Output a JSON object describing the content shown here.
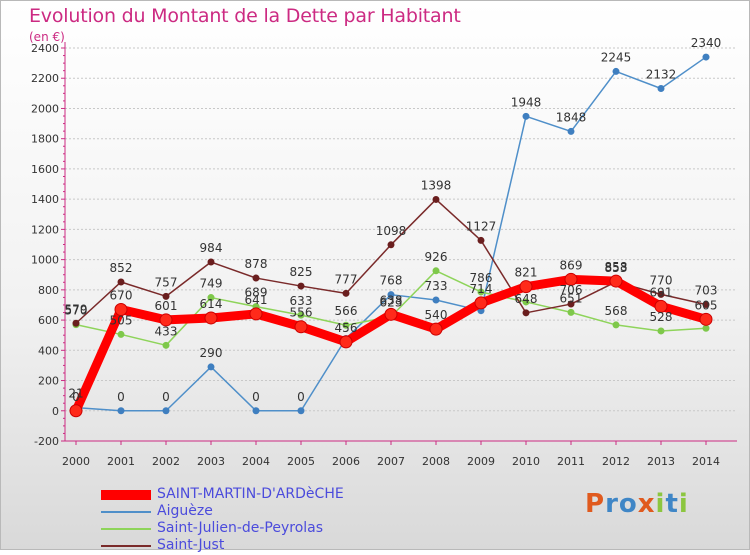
{
  "title": "Evolution du Montant de la Dette par Habitant",
  "unit_label": "(en €)",
  "logo": {
    "letters": [
      "P",
      "r",
      "o",
      "x",
      "i",
      "t",
      "i"
    ],
    "colors": [
      "#e05a1e",
      "#3f86c6",
      "#3f86c6",
      "#e05a1e",
      "#8cc63f",
      "#3f86c6",
      "#8cc63f"
    ]
  },
  "chart_data": {
    "type": "line",
    "title": "Evolution du Montant de la Dette par Habitant",
    "ylabel": "(en €)",
    "x": [
      2000,
      2001,
      2002,
      2003,
      2004,
      2005,
      2006,
      2007,
      2008,
      2009,
      2010,
      2011,
      2012,
      2013,
      2014
    ],
    "ylim": [
      -200,
      2400
    ],
    "yticks": [
      -200,
      0,
      200,
      400,
      600,
      800,
      1000,
      1200,
      1400,
      1600,
      1800,
      2000,
      2200,
      2400
    ],
    "grid": "horizontal",
    "series": [
      {
        "name": "Aiguèze",
        "color": "#4f8fc9",
        "marker": "#3f7fc0",
        "values": [
          21,
          0,
          0,
          290,
          0,
          0,
          478,
          768,
          733,
          662,
          1948,
          1848,
          2245,
          2132,
          2340
        ],
        "labels": [
          "21",
          "0",
          "0",
          "290",
          "0",
          "0",
          "",
          "768",
          "733",
          "",
          "1948",
          "1848",
          "2245",
          "2132",
          "2340"
        ]
      },
      {
        "name": "Saint-Julien-de-Peyrolas",
        "color": "#8ed45a",
        "marker": "#7ec84a",
        "values": [
          570,
          505,
          433,
          749,
          689,
          633,
          566,
          623,
          926,
          786,
          720,
          651,
          568,
          528,
          546
        ],
        "labels": [
          "570",
          "505",
          "433",
          "749",
          "689",
          "633",
          "566",
          "623",
          "926",
          "786",
          "",
          "651",
          "568",
          "528",
          ""
        ]
      },
      {
        "name": "Saint-Just",
        "color": "#7a2a2a",
        "marker": "#6a1e1e",
        "values": [
          579,
          852,
          757,
          984,
          878,
          825,
          777,
          1098,
          1398,
          1127,
          648,
          706,
          853,
          770,
          703
        ],
        "labels": [
          "579",
          "852",
          "757",
          "984",
          "878",
          "825",
          "777",
          "1098",
          "1398",
          "1127",
          "648",
          "706",
          "853",
          "770",
          "703"
        ]
      },
      {
        "name": "SAINT-MARTIN-D'ARDèCHE",
        "color": "#ff0000",
        "marker": "#ff2a1a",
        "bold": true,
        "values": [
          0,
          670,
          601,
          614,
          641,
          556,
          456,
          638,
          540,
          714,
          821,
          869,
          858,
          691,
          605
        ],
        "labels": [
          "0",
          "670",
          "601",
          "614",
          "641",
          "556",
          "456",
          "638",
          "540",
          "714",
          "821",
          "869",
          "858",
          "691",
          "605"
        ]
      }
    ],
    "legend": [
      "SAINT-MARTIN-D'ARDèCHE",
      "Aiguèze",
      "Saint-Julien-de-Peyrolas",
      "Saint-Just"
    ],
    "legend_position": "bottom-left"
  }
}
